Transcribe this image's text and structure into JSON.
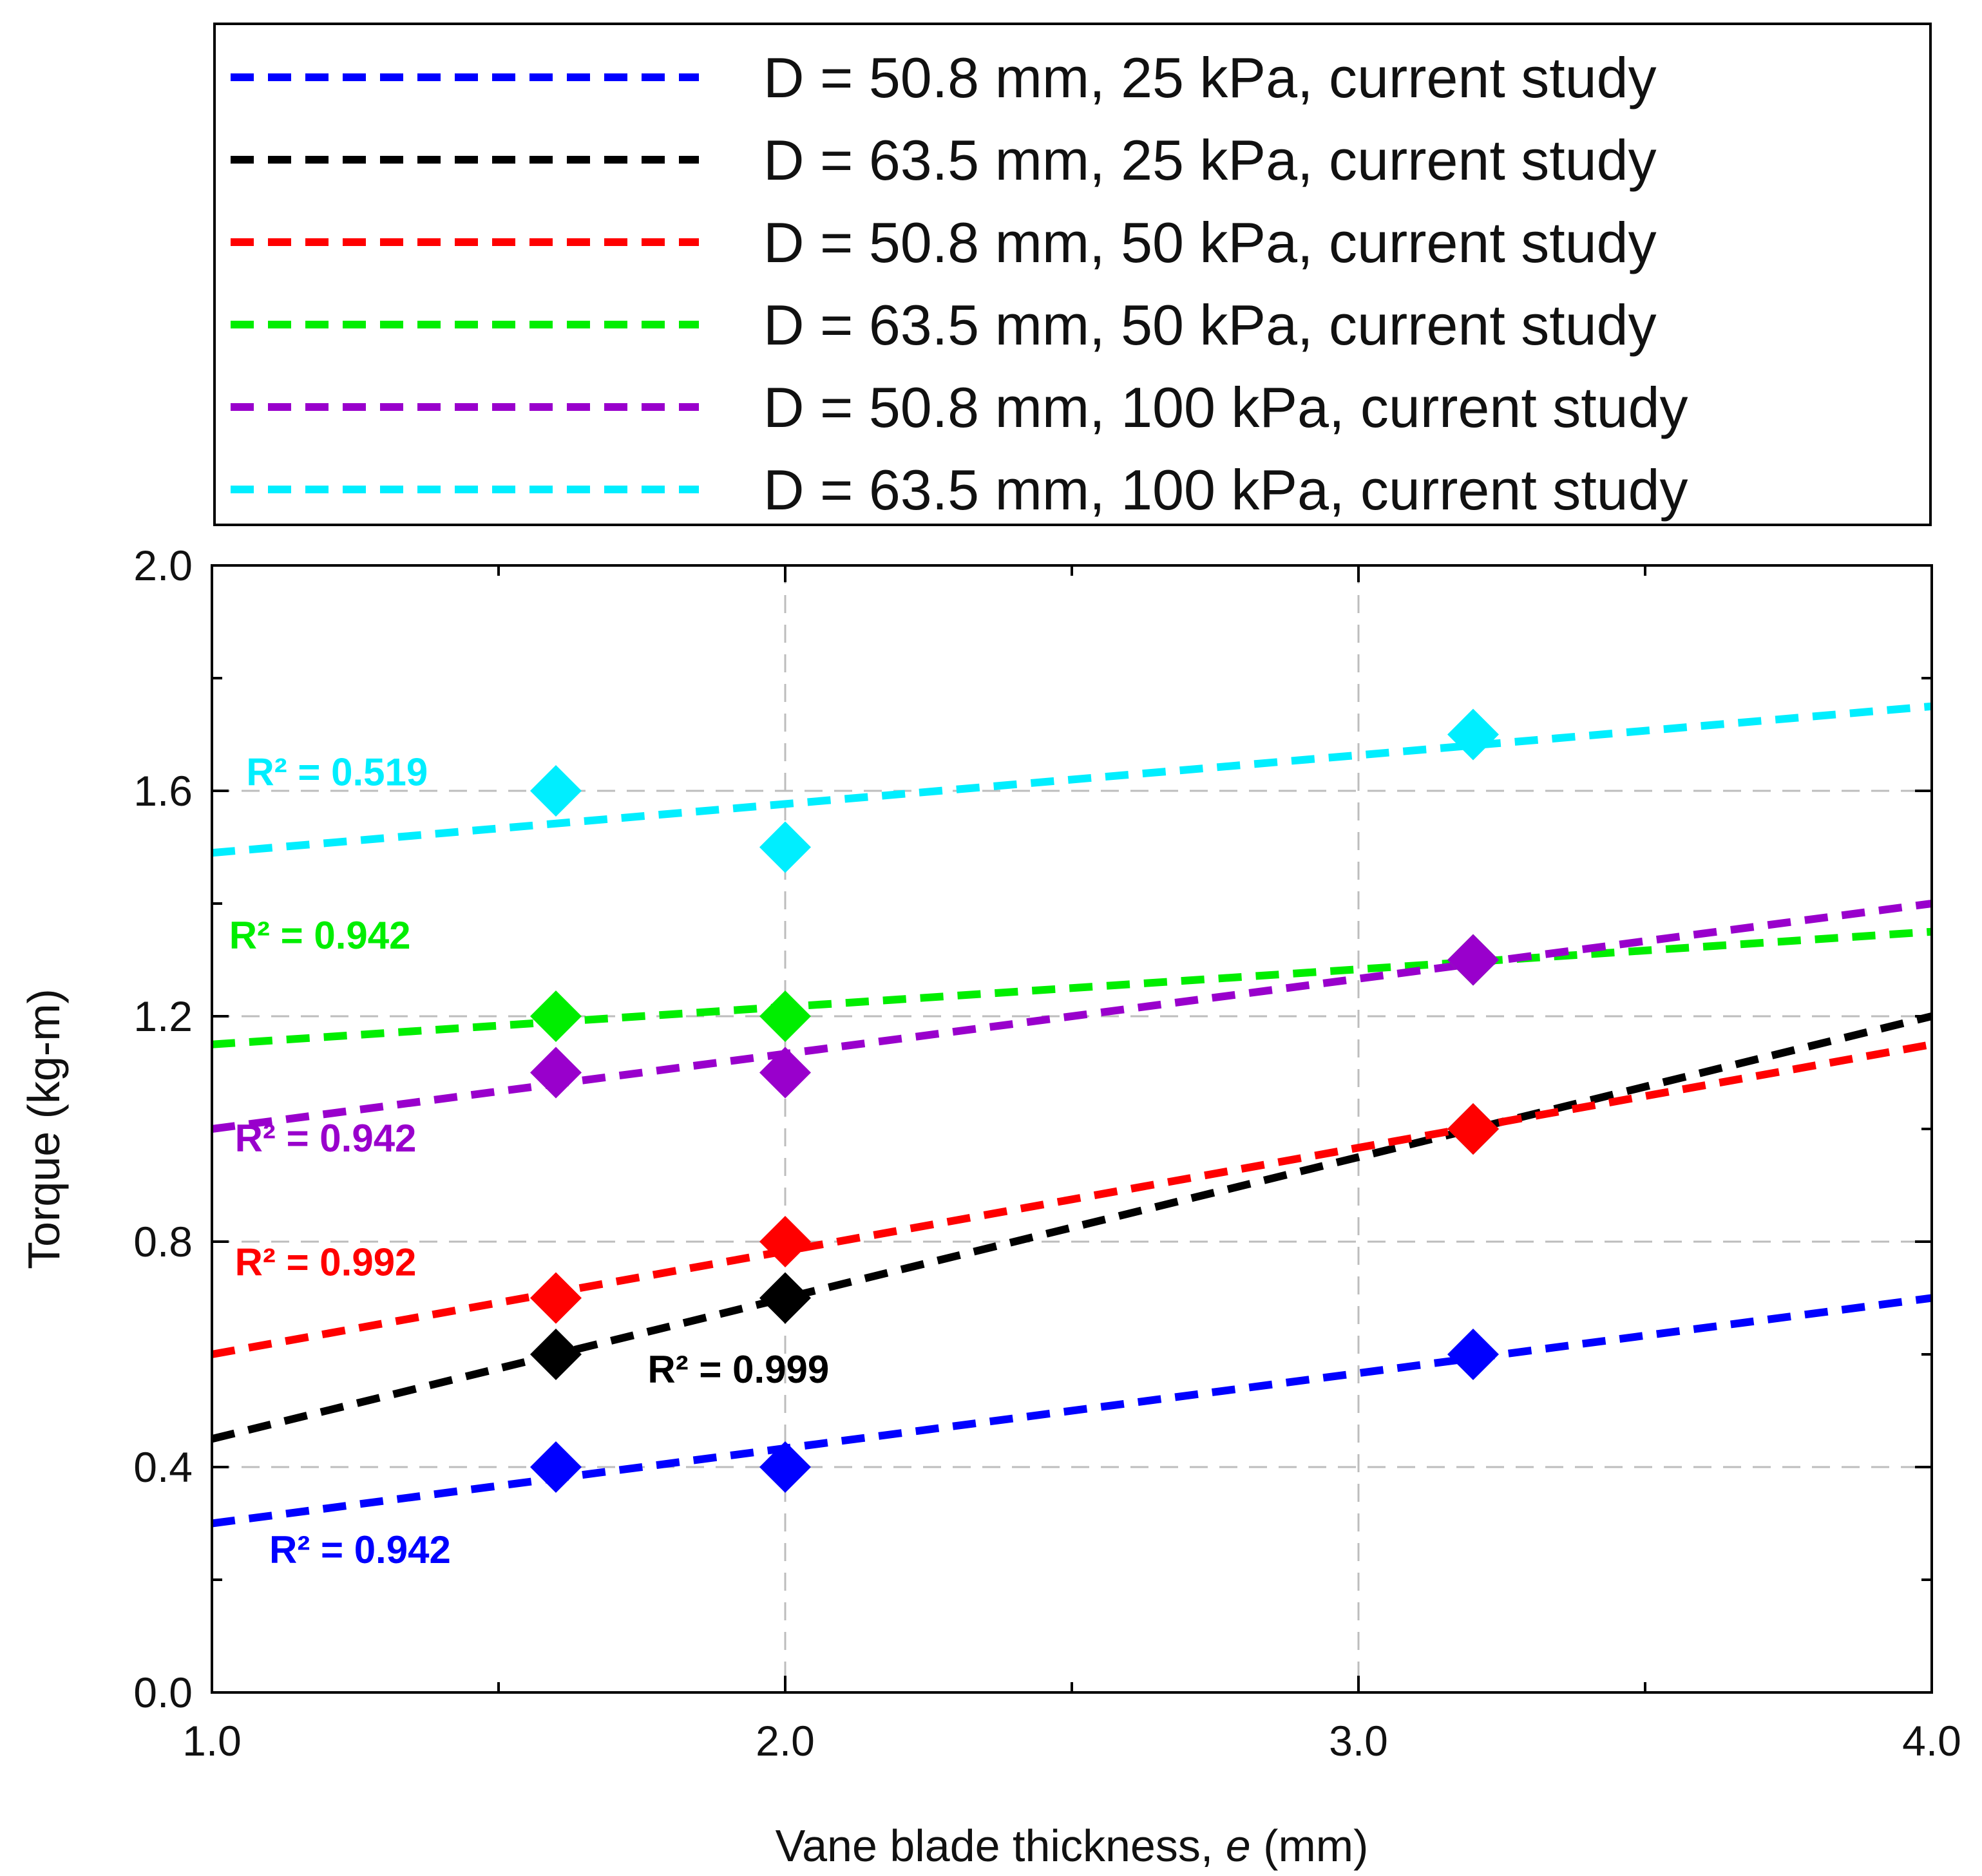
{
  "chart_data": {
    "type": "scatter",
    "xlabel": "Vane blade thickness, e (mm)",
    "xlabel_parts": {
      "prefix": "Vane blade thickness, ",
      "italic": "e",
      "suffix": " (mm)"
    },
    "ylabel": "Torque (kg-m)",
    "xlim": [
      1.0,
      4.0
    ],
    "ylim": [
      0.0,
      2.0
    ],
    "x_major_ticks": [
      1.0,
      2.0,
      3.0,
      4.0
    ],
    "x_tick_labels": [
      "1.0",
      "2.0",
      "3.0",
      "4.0"
    ],
    "x_minor_ticks": [
      1.5,
      2.5,
      3.5
    ],
    "y_major_ticks": [
      0.0,
      0.4,
      0.8,
      1.2,
      1.6,
      2.0
    ],
    "y_tick_labels": [
      "0.0",
      "0.4",
      "0.8",
      "1.2",
      "1.6",
      "2.0"
    ],
    "y_minor_ticks": [
      0.2,
      0.6,
      1.0,
      1.4,
      1.8
    ],
    "grid": "dashed gridlines at x = 2.0, 3.0 and y = 0.4, 0.8, 1.2, 1.6",
    "legend_position": "top, above plot",
    "marker": "diamond",
    "trendline_style": "dashed linear fit",
    "series": [
      {
        "name": "D = 50.8 mm, 25 kPa, current study",
        "color": "#0000ff",
        "x": [
          1.6,
          2.0,
          3.2
        ],
        "y": [
          0.4,
          0.4,
          0.6
        ],
        "trend": {
          "x": [
            1.0,
            4.0
          ],
          "y": [
            0.3,
            0.7
          ]
        },
        "r2_label": "R² = 0.942"
      },
      {
        "name": "D = 63.5 mm, 25 kPa, current study",
        "color": "#000000",
        "x": [
          1.6,
          2.0,
          3.2
        ],
        "y": [
          0.6,
          0.7,
          1.0
        ],
        "trend": {
          "x": [
            1.0,
            4.0
          ],
          "y": [
            0.45,
            1.2
          ]
        },
        "r2_label": "R² = 0.999"
      },
      {
        "name": "D = 50.8 mm, 50 kPa, current study",
        "color": "#ff0000",
        "x": [
          1.6,
          2.0,
          3.2
        ],
        "y": [
          0.7,
          0.8,
          1.0
        ],
        "trend": {
          "x": [
            1.0,
            4.0
          ],
          "y": [
            0.6,
            1.15
          ]
        },
        "r2_label": "R² = 0.992"
      },
      {
        "name": "D = 63.5 mm, 50 kPa, current study",
        "color": "#00ee00",
        "x": [
          1.6,
          2.0,
          3.2
        ],
        "y": [
          1.2,
          1.2,
          1.3
        ],
        "trend": {
          "x": [
            1.0,
            4.0
          ],
          "y": [
            1.15,
            1.35
          ]
        },
        "r2_label": "R² = 0.942"
      },
      {
        "name": "D = 50.8 mm, 100 kPa, current study",
        "color": "#9900cc",
        "x": [
          1.6,
          2.0,
          3.2
        ],
        "y": [
          1.1,
          1.1,
          1.3
        ],
        "trend": {
          "x": [
            1.0,
            4.0
          ],
          "y": [
            1.0,
            1.4
          ]
        },
        "r2_label": "R² = 0.942"
      },
      {
        "name": "D = 63.5 mm, 100 kPa, current study",
        "color": "#00eeff",
        "x": [
          1.6,
          2.0,
          3.2
        ],
        "y": [
          1.6,
          1.5,
          1.7
        ],
        "trend": {
          "x": [
            1.0,
            4.0
          ],
          "y": [
            1.49,
            1.75
          ]
        },
        "r2_label": "R² = 0.519"
      }
    ]
  }
}
